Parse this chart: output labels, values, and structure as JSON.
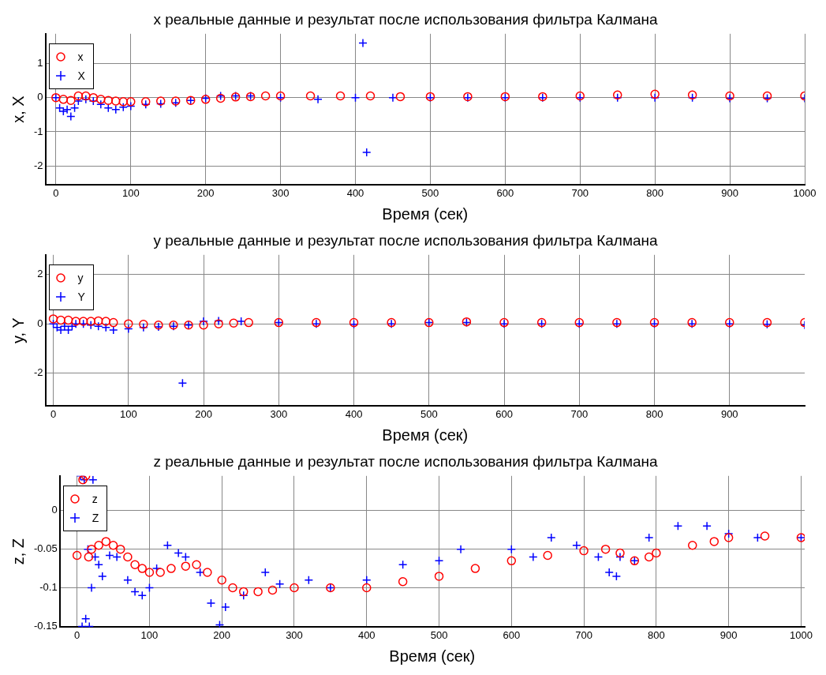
{
  "chart_data": [
    {
      "type": "scatter",
      "title": "x реальные данные и результат после использования фильтра Калмана",
      "xlabel": "Время (сек)",
      "ylabel": "x, X",
      "xlim": [
        -14,
        1000
      ],
      "ylim": [
        -2.56,
        1.87
      ],
      "xticks": [
        0,
        100,
        200,
        300,
        400,
        500,
        600,
        700,
        800,
        900,
        1000
      ],
      "yticks": [
        -2,
        -1,
        0,
        1
      ],
      "grid": true,
      "legend": "top left",
      "series": [
        {
          "name": "x",
          "color": "#ff0000",
          "marker": "circle",
          "x": [
            0,
            10,
            20,
            30,
            40,
            50,
            60,
            70,
            80,
            90,
            100,
            120,
            140,
            160,
            180,
            200,
            220,
            240,
            260,
            280,
            300,
            340,
            380,
            420,
            460,
            500,
            550,
            600,
            650,
            700,
            750,
            800,
            850,
            900,
            950,
            1000
          ],
          "values": [
            0,
            -0.05,
            -0.08,
            0.05,
            0.05,
            0,
            -0.05,
            -0.08,
            -0.1,
            -0.12,
            -0.12,
            -0.12,
            -0.1,
            -0.1,
            -0.08,
            -0.05,
            -0.02,
            0.02,
            0.03,
            0.05,
            0.05,
            0.05,
            0.05,
            0.05,
            0.03,
            0.03,
            0.03,
            0.03,
            0.03,
            0.05,
            0.08,
            0.1,
            0.08,
            0.05,
            0.05,
            0.05
          ]
        },
        {
          "name": "X",
          "color": "#0000ff",
          "marker": "cross",
          "x": [
            0,
            5,
            10,
            15,
            20,
            25,
            30,
            40,
            50,
            60,
            70,
            80,
            90,
            100,
            120,
            140,
            160,
            180,
            200,
            220,
            240,
            260,
            300,
            350,
            400,
            410,
            415,
            450,
            500,
            550,
            600,
            650,
            700,
            750,
            800,
            850,
            900,
            950,
            1000
          ],
          "values": [
            0,
            -0.3,
            -0.4,
            -0.35,
            -0.55,
            -0.3,
            -0.1,
            -0.05,
            -0.1,
            -0.2,
            -0.3,
            -0.35,
            -0.28,
            -0.25,
            -0.2,
            -0.18,
            -0.15,
            -0.08,
            -0.02,
            0.05,
            0.05,
            0.05,
            0,
            -0.05,
            0,
            1.6,
            -1.6,
            0,
            0,
            0,
            0,
            0,
            0,
            0,
            0,
            0,
            -0.02,
            -0.02,
            -0.02
          ]
        }
      ]
    },
    {
      "type": "scatter",
      "title": "y реальные данные и результат после использования фильтра Калмана",
      "xlabel": "Время (сек)",
      "ylabel": "y, Y",
      "xlim": [
        -10.5,
        1000
      ],
      "ylim": [
        -3.33,
        2.79
      ],
      "xticks": [
        0,
        100,
        200,
        300,
        400,
        500,
        600,
        700,
        800,
        900
      ],
      "yticks": [
        -2,
        0,
        2
      ],
      "grid": true,
      "legend": "top left",
      "series": [
        {
          "name": "y",
          "color": "#ff0000",
          "marker": "circle",
          "x": [
            0,
            10,
            20,
            30,
            40,
            50,
            60,
            70,
            80,
            100,
            120,
            140,
            160,
            180,
            200,
            220,
            240,
            260,
            300,
            350,
            400,
            450,
            500,
            550,
            600,
            650,
            700,
            750,
            800,
            850,
            900,
            950,
            1000
          ],
          "values": [
            0.2,
            0.15,
            0.15,
            0.1,
            0.1,
            0.1,
            0.12,
            0.1,
            0.05,
            0,
            -0.02,
            -0.05,
            -0.05,
            -0.05,
            -0.05,
            0,
            0.03,
            0.05,
            0.05,
            0.05,
            0.05,
            0.05,
            0.05,
            0.08,
            0.05,
            0.05,
            0.05,
            0.05,
            0.05,
            0.05,
            0.05,
            0.05,
            0.05
          ]
        },
        {
          "name": "Y",
          "color": "#0000ff",
          "marker": "cross",
          "x": [
            0,
            5,
            10,
            15,
            20,
            25,
            30,
            40,
            50,
            60,
            70,
            80,
            100,
            120,
            140,
            160,
            172,
            180,
            200,
            220,
            250,
            300,
            350,
            400,
            450,
            500,
            550,
            600,
            650,
            700,
            750,
            800,
            850,
            900,
            950,
            1000
          ],
          "values": [
            0,
            -0.15,
            -0.25,
            -0.1,
            -0.25,
            -0.1,
            0,
            0,
            -0.05,
            -0.1,
            -0.15,
            -0.25,
            -0.2,
            -0.15,
            -0.12,
            -0.1,
            -2.4,
            -0.05,
            0.1,
            0.12,
            0.1,
            0.05,
            0,
            -0.02,
            0,
            0.05,
            0.05,
            0,
            0,
            0,
            0,
            0,
            0,
            0,
            -0.02,
            -0.05
          ]
        }
      ]
    },
    {
      "type": "scatter",
      "title": "z реальные данные и результат после использования фильтра Калмана",
      "xlabel": "Время (сек)",
      "ylabel": "z, Z",
      "xlim": [
        -24,
        1005
      ],
      "ylim": [
        -0.151,
        0.045
      ],
      "xticks": [
        0,
        100,
        200,
        300,
        400,
        500,
        600,
        700,
        800,
        900,
        1000
      ],
      "yticks": [
        -0.15,
        -0.1,
        -0.05,
        0
      ],
      "grid": true,
      "legend": "top left",
      "series": [
        {
          "name": "z",
          "color": "#ff0000",
          "marker": "circle",
          "x": [
            0,
            8,
            12,
            16,
            20,
            30,
            40,
            50,
            60,
            70,
            80,
            90,
            100,
            115,
            130,
            150,
            165,
            180,
            200,
            215,
            230,
            250,
            270,
            300,
            350,
            400,
            450,
            500,
            550,
            600,
            650,
            700,
            730,
            750,
            770,
            790,
            800,
            850,
            880,
            900,
            950,
            1000
          ],
          "values": [
            -0.058,
            0.04,
            0.045,
            -0.06,
            -0.05,
            -0.045,
            -0.04,
            -0.045,
            -0.05,
            -0.06,
            -0.07,
            -0.075,
            -0.08,
            -0.08,
            -0.075,
            -0.072,
            -0.07,
            -0.08,
            -0.09,
            -0.1,
            -0.105,
            -0.105,
            -0.103,
            -0.1,
            -0.1,
            -0.1,
            -0.092,
            -0.085,
            -0.075,
            -0.065,
            -0.058,
            -0.052,
            -0.05,
            -0.055,
            -0.065,
            -0.06,
            -0.055,
            -0.045,
            -0.04,
            -0.035,
            -0.033,
            -0.035
          ]
        },
        {
          "name": "Z",
          "color": "#0000ff",
          "marker": "cross",
          "x": [
            5,
            7,
            10,
            12,
            15,
            17,
            20,
            22,
            25,
            30,
            35,
            45,
            55,
            70,
            80,
            90,
            100,
            110,
            125,
            140,
            150,
            170,
            185,
            197,
            205,
            230,
            260,
            280,
            320,
            350,
            400,
            450,
            500,
            530,
            600,
            630,
            655,
            690,
            720,
            735,
            745,
            750,
            770,
            790,
            830,
            870,
            900,
            940,
            1000
          ],
          "values": [
            0.045,
            -0.15,
            0.04,
            -0.14,
            -0.05,
            -0.15,
            -0.1,
            0.04,
            -0.06,
            -0.07,
            -0.085,
            -0.058,
            -0.06,
            -0.09,
            -0.105,
            -0.11,
            -0.1,
            -0.075,
            -0.045,
            -0.055,
            -0.06,
            -0.08,
            -0.12,
            -0.148,
            -0.125,
            -0.11,
            -0.08,
            -0.095,
            -0.09,
            -0.1,
            -0.09,
            -0.07,
            -0.065,
            -0.05,
            -0.05,
            -0.06,
            -0.035,
            -0.045,
            -0.06,
            -0.08,
            -0.085,
            -0.06,
            -0.065,
            -0.035,
            -0.02,
            -0.02,
            -0.03,
            -0.035,
            -0.035
          ]
        }
      ]
    }
  ]
}
